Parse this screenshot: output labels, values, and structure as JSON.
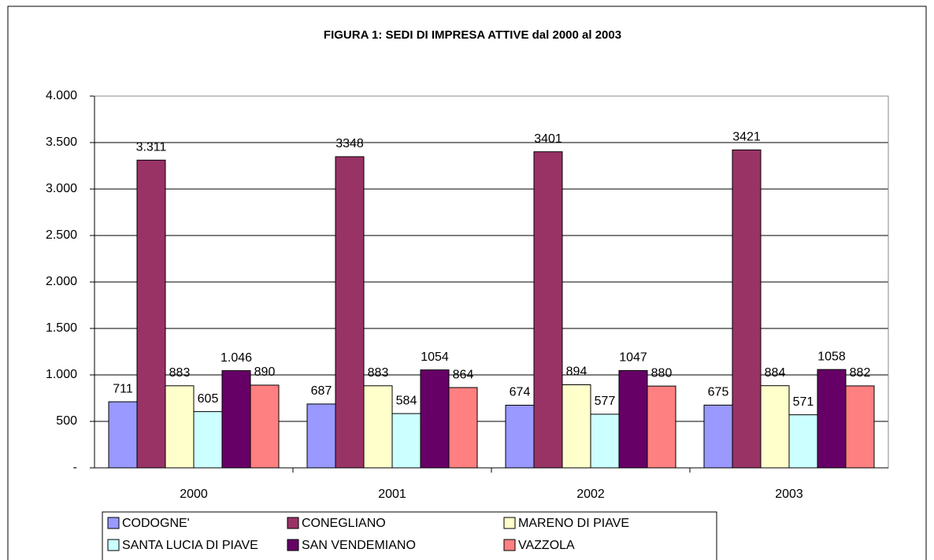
{
  "chart_data": {
    "type": "bar",
    "title": "FIGURA 1: SEDI DI IMPRESA ATTIVE dal 2000 al 2003",
    "categories": [
      "2000",
      "2001",
      "2002",
      "2003"
    ],
    "series": [
      {
        "name": "CODOGNE'",
        "color": "#9999ff",
        "values": [
          711,
          687,
          674,
          675
        ]
      },
      {
        "name": "CONEGLIANO",
        "color": "#993366",
        "values": [
          3311,
          3348,
          3401,
          3421
        ],
        "value_labels": [
          "3.311",
          "3348",
          "3401",
          "3421"
        ]
      },
      {
        "name": "MARENO DI PIAVE",
        "color": "#ffffcc",
        "values": [
          883,
          883,
          894,
          884
        ]
      },
      {
        "name": "SANTA LUCIA DI PIAVE",
        "color": "#ccffff",
        "values": [
          605,
          584,
          577,
          571
        ]
      },
      {
        "name": "SAN VENDEMIANO",
        "color": "#660066",
        "values": [
          1046,
          1054,
          1047,
          1058
        ],
        "value_labels": [
          "1.046",
          "1054",
          "1047",
          "1058"
        ]
      },
      {
        "name": "VAZZOLA",
        "color": "#ff8080",
        "values": [
          890,
          864,
          880,
          882
        ]
      }
    ],
    "ylim": [
      0,
      4000
    ],
    "yticks": [
      {
        "value": 0,
        "label": "-"
      },
      500,
      {
        "value": 1000,
        "label": "1.000"
      },
      {
        "value": 1500,
        "label": "1.500"
      },
      {
        "value": 2000,
        "label": "2.000"
      },
      {
        "value": 2500,
        "label": "2.500"
      },
      {
        "value": 3000,
        "label": "3.000"
      },
      {
        "value": 3500,
        "label": "3.500"
      },
      {
        "value": 4000,
        "label": "4.000"
      }
    ],
    "grid": true,
    "legend": "bottom"
  }
}
